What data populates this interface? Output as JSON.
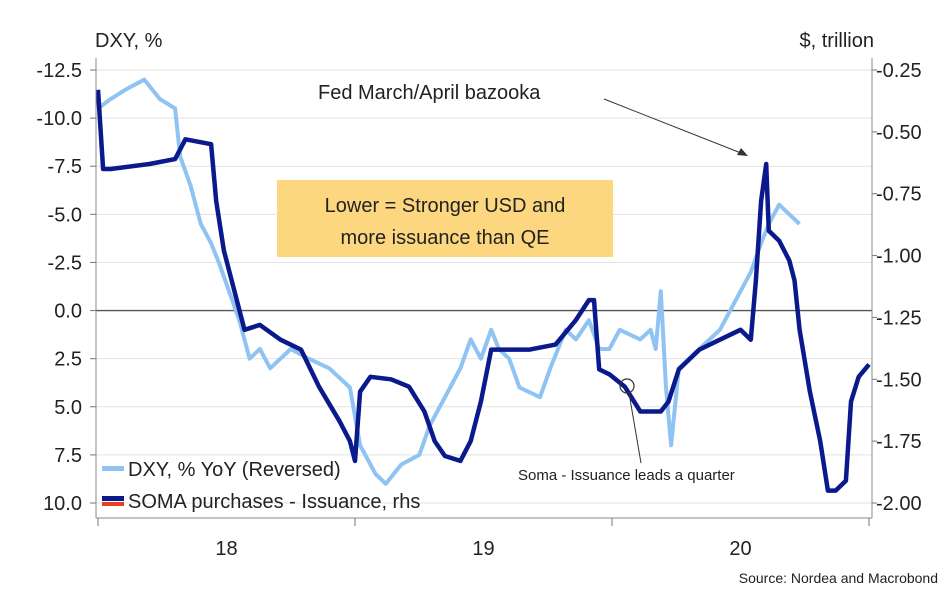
{
  "chart_data": {
    "type": "line",
    "left_axis_label": "DXY, %",
    "right_axis_label": "$, trillion",
    "left_ylim": [
      -12.5,
      10.0
    ],
    "left_reversed": true,
    "left_ticks": [
      "-12.5",
      "-10.0",
      "-7.5",
      "-5.0",
      "-2.5",
      "0.0",
      "2.5",
      "5.0",
      "7.5",
      "10.0"
    ],
    "right_ylim": [
      -0.25,
      -2.0
    ],
    "right_ticks": [
      "-0.25",
      "-0.50",
      "-0.75",
      "-1.00",
      "-1.25",
      "-1.50",
      "-1.75",
      "-2.00"
    ],
    "x_ticks": [
      "18",
      "19",
      "20"
    ],
    "xlim": [
      2018.0,
      2021.0
    ],
    "grid": true,
    "legend_placement": "bottom-left",
    "series": [
      {
        "name": "DXY, % YoY (Reversed)",
        "axis": "left",
        "color": "#8ec3f2",
        "x": [
          2018.0,
          2018.05,
          2018.11,
          2018.18,
          2018.24,
          2018.3,
          2018.32,
          2018.36,
          2018.4,
          2018.44,
          2018.47,
          2018.51,
          2018.55,
          2018.59,
          2018.63,
          2018.67,
          2018.75,
          2018.82,
          2018.9,
          2018.98,
          2019.02,
          2019.08,
          2019.12,
          2019.18,
          2019.25,
          2019.29,
          2019.33,
          2019.41,
          2019.45,
          2019.49,
          2019.53,
          2019.56,
          2019.6,
          2019.64,
          2019.72,
          2019.76,
          2019.82,
          2019.86,
          2019.91,
          2019.95,
          2019.99,
          2020.03,
          2020.11,
          2020.15,
          2020.17,
          2020.19,
          2020.21,
          2020.23,
          2020.26,
          2020.34,
          2020.42,
          2020.5,
          2020.54,
          2020.58,
          2020.61,
          2020.65,
          2020.69,
          2020.73
        ],
        "y": [
          -10.5,
          -11,
          -11.5,
          -12,
          -11,
          -10.5,
          -8,
          -6.5,
          -4.5,
          -3.5,
          -2.5,
          -1,
          0.5,
          2.5,
          2,
          3,
          2,
          2.5,
          3,
          4,
          7,
          8.5,
          9,
          8,
          7.5,
          6,
          5,
          3,
          1.5,
          2.5,
          1,
          2,
          2.5,
          4,
          4.5,
          3,
          1,
          1.5,
          0.5,
          2,
          2,
          1,
          1.5,
          1,
          2,
          -1,
          4,
          7,
          3,
          2,
          1,
          -1,
          -2,
          -3.5,
          -4.5,
          -5.5,
          -5,
          -4.5
        ]
      },
      {
        "name": "SOMA purchases - Issuance, rhs",
        "axis": "right",
        "color": "#0a1a8c",
        "x": [
          2018.0,
          2018.02,
          2018.05,
          2018.2,
          2018.3,
          2018.34,
          2018.44,
          2018.46,
          2018.49,
          2018.53,
          2018.57,
          2018.63,
          2018.71,
          2018.79,
          2018.86,
          2018.94,
          2018.98,
          2019.0,
          2019.02,
          2019.06,
          2019.14,
          2019.21,
          2019.27,
          2019.31,
          2019.35,
          2019.41,
          2019.45,
          2019.49,
          2019.53,
          2019.6,
          2019.68,
          2019.78,
          2019.86,
          2019.91,
          2019.93,
          2019.95,
          2019.99,
          2020.05,
          2020.11,
          2020.19,
          2020.22,
          2020.26,
          2020.34,
          2020.42,
          2020.5,
          2020.54,
          2020.56,
          2020.58,
          2020.6,
          2020.61,
          2020.65,
          2020.69,
          2020.71,
          2020.73,
          2020.77,
          2020.81,
          2020.84,
          2020.87,
          2020.91,
          2020.93,
          2020.96,
          2021.0
        ],
        "y": [
          -0.33,
          -0.65,
          -0.65,
          -0.63,
          -0.61,
          -0.53,
          -0.55,
          -0.78,
          -0.98,
          -1.14,
          -1.3,
          -1.28,
          -1.34,
          -1.38,
          -1.53,
          -1.67,
          -1.75,
          -1.83,
          -1.55,
          -1.49,
          -1.5,
          -1.53,
          -1.63,
          -1.75,
          -1.81,
          -1.83,
          -1.75,
          -1.59,
          -1.38,
          -1.38,
          -1.38,
          -1.36,
          -1.26,
          -1.18,
          -1.18,
          -1.46,
          -1.48,
          -1.53,
          -1.63,
          -1.63,
          -1.59,
          -1.46,
          -1.38,
          -1.34,
          -1.3,
          -1.34,
          -1.1,
          -0.78,
          -0.63,
          -0.9,
          -0.94,
          -1.02,
          -1.1,
          -1.3,
          -1.55,
          -1.75,
          -1.95,
          -1.95,
          -1.91,
          -1.59,
          -1.49,
          -1.44
        ]
      },
      {
        "name": "",
        "legend_only": true,
        "color": "#e8401c"
      }
    ],
    "annotations": {
      "box": "Lower = Stronger USD and\nmore issuance than QE",
      "box_color": "#fcd77f",
      "bazooka": "Fed March/April bazooka",
      "soma_note": "Soma - Issuance leads a quarter"
    },
    "source": "Source: Nordea and Macrobond"
  }
}
